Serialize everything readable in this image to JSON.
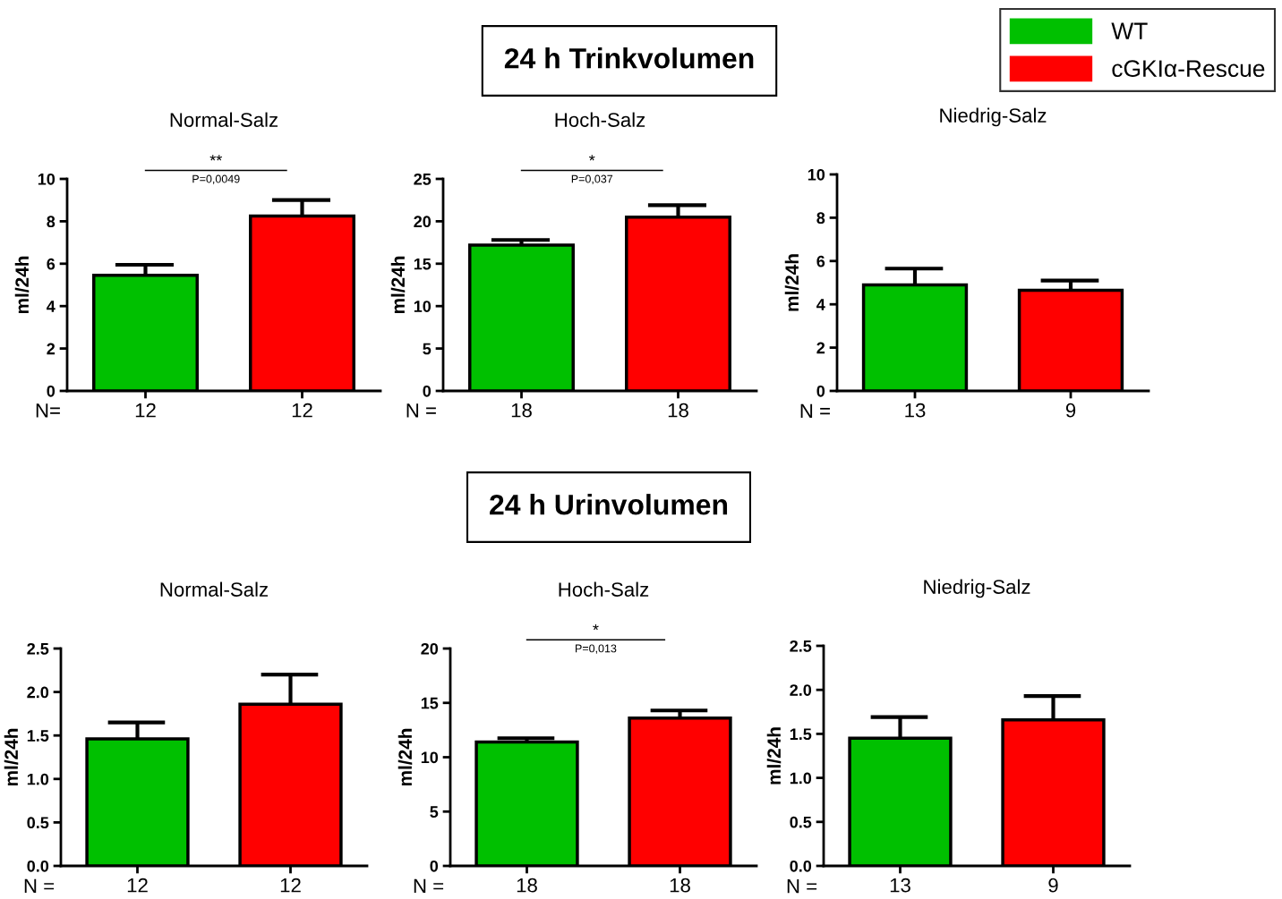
{
  "chart_data": [
    {
      "type": "bar",
      "title": "Normal-Salz",
      "ylabel": "ml/24h",
      "xlabel": "N=",
      "categories": [
        "12",
        "12"
      ],
      "series": [
        {
          "name": "WT",
          "color": "#00c000",
          "values": [
            5.45,
            null
          ],
          "errors": [
            0.5,
            null
          ]
        },
        {
          "name": "cGKIα-Rescue",
          "color": "#ff0000",
          "values": [
            null,
            8.25
          ],
          "errors": [
            null,
            0.75
          ]
        }
      ],
      "ylim": [
        0,
        10
      ],
      "yticks": [
        0,
        2,
        4,
        6,
        8,
        10
      ],
      "annotations": [
        "**",
        "P=0,0049"
      ],
      "legend": "top right",
      "grid": false
    },
    {
      "type": "bar",
      "title": "Hoch-Salz",
      "subtitle": "24 h Trinkvolumen",
      "ylabel": "ml/24h",
      "xlabel": "N =",
      "categories": [
        "18",
        "18"
      ],
      "values": [
        17.2,
        20.5
      ],
      "colors": [
        "#00c000",
        "#ff0000"
      ],
      "errors": [
        0.6,
        1.4
      ],
      "ylim": [
        0,
        25
      ],
      "yticks": [
        0,
        5,
        10,
        15,
        20,
        25
      ],
      "annotations": [
        "*",
        "P=0,037"
      ],
      "grid": false
    },
    {
      "type": "bar",
      "title": "Niedrig-Salz",
      "ylabel": "ml/24h",
      "xlabel": "N =",
      "categories": [
        "13",
        "9"
      ],
      "values": [
        4.9,
        4.65
      ],
      "colors": [
        "#00c000",
        "#ff0000"
      ],
      "errors": [
        0.75,
        0.45
      ],
      "ylim": [
        0,
        10
      ],
      "yticks": [
        0,
        2,
        4,
        6,
        8,
        10
      ],
      "grid": false
    },
    {
      "type": "bar",
      "title": "Normal-Salz",
      "ylabel": "ml/24h",
      "xlabel": "N =",
      "categories": [
        "12",
        "12"
      ],
      "values": [
        1.46,
        1.86
      ],
      "colors": [
        "#00c000",
        "#ff0000"
      ],
      "errors": [
        0.19,
        0.34
      ],
      "ylim": [
        0,
        2.5
      ],
      "yticks": [
        {
          "value": 0,
          "label": "0.0"
        },
        0.5,
        {
          "value": 1,
          "label": "1.0"
        },
        1.5,
        {
          "value": 2,
          "label": "2.0"
        },
        2.5
      ],
      "grid": false
    },
    {
      "type": "bar",
      "title": "Hoch-Salz",
      "subtitle": "24 h Urinvolumen",
      "ylabel": "ml/24h",
      "xlabel": "N =",
      "categories": [
        "18",
        "18"
      ],
      "values": [
        11.4,
        13.6
      ],
      "colors": [
        "#00c000",
        "#ff0000"
      ],
      "errors": [
        0.35,
        0.7
      ],
      "ylim": [
        0,
        20
      ],
      "yticks": [
        0,
        5,
        10,
        15,
        20
      ],
      "annotations": [
        "*",
        "P=0,013"
      ],
      "grid": false
    },
    {
      "type": "bar",
      "title": "Niedrig-Salz",
      "ylabel": "ml/24h",
      "xlabel": "N =",
      "categories": [
        "13",
        "9"
      ],
      "values": [
        1.45,
        1.66
      ],
      "colors": [
        "#00c000",
        "#ff0000"
      ],
      "errors": [
        0.24,
        0.27
      ],
      "ylim": [
        0,
        2.5
      ],
      "yticks": [
        {
          "value": 0,
          "label": "0.0"
        },
        0.5,
        {
          "value": 1,
          "label": "1.0"
        },
        1.5,
        {
          "value": 2,
          "label": "2.0"
        },
        2.5
      ],
      "grid": false
    }
  ]
}
